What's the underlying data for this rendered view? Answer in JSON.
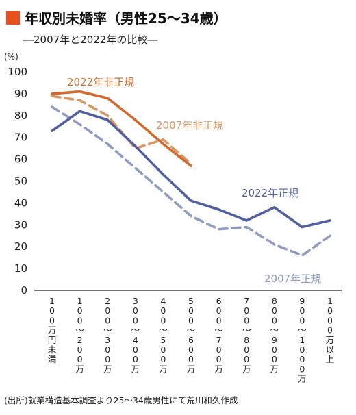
{
  "header": {
    "title": "年収別未婚率（男性25～34歳）",
    "subtitle": "―2007年と2022年の比較―"
  },
  "source_note": "(出所)就業構造基本調査より25～34歳男性にて荒川和久作成",
  "chart_data": {
    "type": "line",
    "title": "年収別未婚率（男性25～34歳）",
    "subtitle": "―2007年と2022年の比較―",
    "ylabel": "(%)",
    "xlabel": "",
    "ylim": [
      0,
      100
    ],
    "yticks": [
      0,
      10,
      20,
      30,
      40,
      50,
      60,
      70,
      80,
      90,
      100
    ],
    "grid": false,
    "legend": "inline labels near lines",
    "categories": [
      "100万円未満",
      "100～200万",
      "200～300万",
      "300～400万",
      "400～500万",
      "500～600万",
      "600～700万",
      "700～800万",
      "800～900万",
      "900～1000万",
      "1000万以上"
    ],
    "series": [
      {
        "name": "2022年非正規",
        "color": "#d2692d",
        "dashed": false,
        "values": [
          90,
          91,
          88,
          78,
          67,
          57,
          null,
          null,
          null,
          null,
          null
        ]
      },
      {
        "name": "2007年非正規",
        "color": "#dd9560",
        "dashed": true,
        "values": [
          89,
          87,
          80,
          65,
          69,
          58,
          null,
          null,
          null,
          null,
          null
        ]
      },
      {
        "name": "2022年正規",
        "color": "#4e5fa3",
        "dashed": false,
        "values": [
          73,
          82,
          78,
          66,
          53,
          41,
          37,
          32,
          38,
          29,
          32
        ]
      },
      {
        "name": "2007年正規",
        "color": "#8c9cc8",
        "dashed": true,
        "values": [
          84,
          76,
          67,
          56,
          45,
          34,
          28,
          29,
          21,
          16,
          25
        ]
      }
    ]
  }
}
